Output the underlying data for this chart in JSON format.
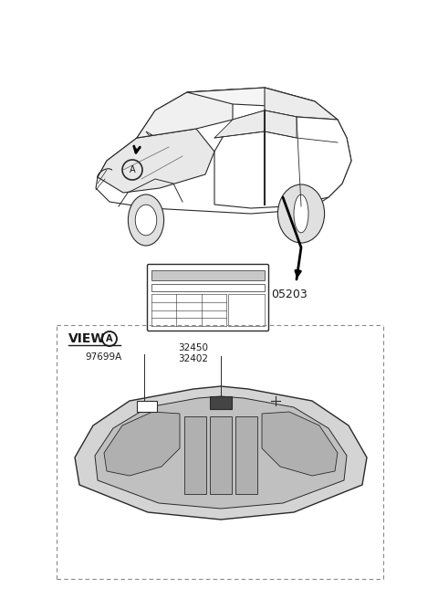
{
  "bg_color": "#ffffff",
  "part_05203": "05203",
  "part_97699A": "97699A",
  "part_32450": "32450",
  "part_32402": "32402",
  "view_label": "VIEW",
  "circle_label": "A",
  "line_color": "#2a2a2a",
  "dash_color": "#888888",
  "text_color": "#1a1a1a",
  "car_fill": "#ffffff",
  "car_shadow": "#e0e0e0",
  "hood_fill": "#d4d4d4",
  "hood_inner": "#c0c0c0",
  "hood_panel": "#b0b0b0",
  "label_sticker_fill": "#e8e8e8"
}
